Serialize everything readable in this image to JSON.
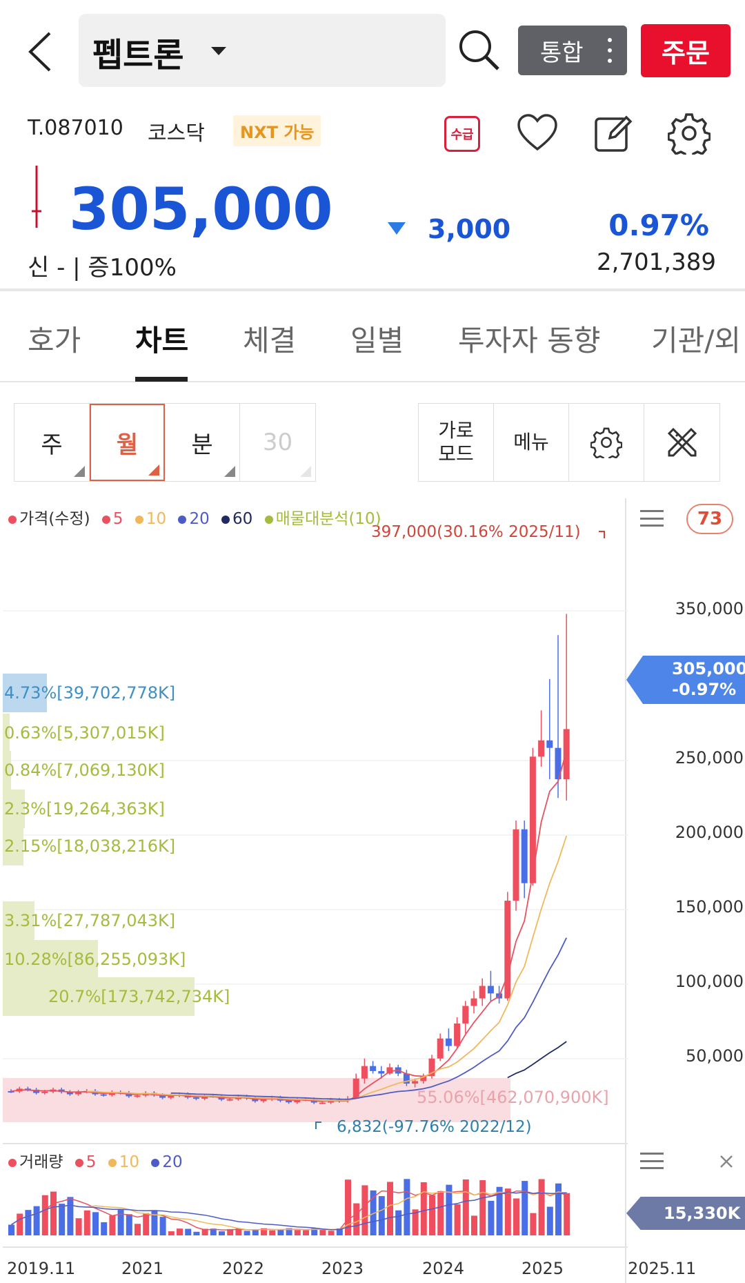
{
  "header": {
    "stock_name": "펩트론",
    "integrated_label": "통합",
    "order_label": "주문"
  },
  "info": {
    "code": "T.087010",
    "market": "코스닥",
    "nxt_badge": "NXT 가능",
    "supply_label": "수급"
  },
  "quote": {
    "price": "305,000",
    "change": "3,000",
    "change_pct": "0.97%",
    "credit": "신 - | 증100%",
    "volume": "2,701,389"
  },
  "tabs": [
    "호가",
    "차트",
    "체결",
    "일별",
    "투자자 동향",
    "기관/외"
  ],
  "periods": [
    "주",
    "월",
    "분",
    "30"
  ],
  "tools": {
    "landscape": "가로\n모드",
    "menu": "메뉴"
  },
  "legend": {
    "price": "가격(수정)",
    "ma5": "5",
    "ma10": "10",
    "ma20": "20",
    "ma60": "60",
    "vp": "매물대분석(10)",
    "volume": "거래량",
    "vma5": "5",
    "vma10": "10",
    "vma20": "20"
  },
  "badge_count": "73",
  "price_tag": {
    "price": "305,000",
    "pct": "-0.97%"
  },
  "volume_tag": "15,330K",
  "annotations": {
    "high": "397,000(30.16% 2025/11)",
    "low": "6,832(-97.76% 2022/12)"
  },
  "volume_profile": [
    "4.73%[39,702,778K]",
    "0.63%[5,307,015K]",
    "0.84%[7,069,130K]",
    "2.3%[19,264,363K]",
    "2.15%[18,038,216K]",
    "3.31%[27,787,043K]",
    "10.28%[86,255,093K]",
    "20.7%[173,742,734K]",
    "55.06%[462,070,900K]"
  ],
  "colors": {
    "up": "#ef4e5e",
    "down": "#4a6ee6",
    "ma5": "#e8515f",
    "ma10": "#f0b85a",
    "ma20": "#4e5bc7",
    "ma60": "#1f2a63",
    "vp": "#a4bc3c"
  },
  "chart_data": {
    "type": "candlestick",
    "y_ticks": [
      "350,000",
      "250,000",
      "200,000",
      "150,000",
      "100,000",
      "50,000"
    ],
    "x_ticks": [
      "2019.11",
      "2021",
      "2022",
      "2023",
      "2024",
      "2025",
      "2025.11"
    ],
    "ylim": [
      0,
      400000
    ],
    "last_close": 305000
  }
}
